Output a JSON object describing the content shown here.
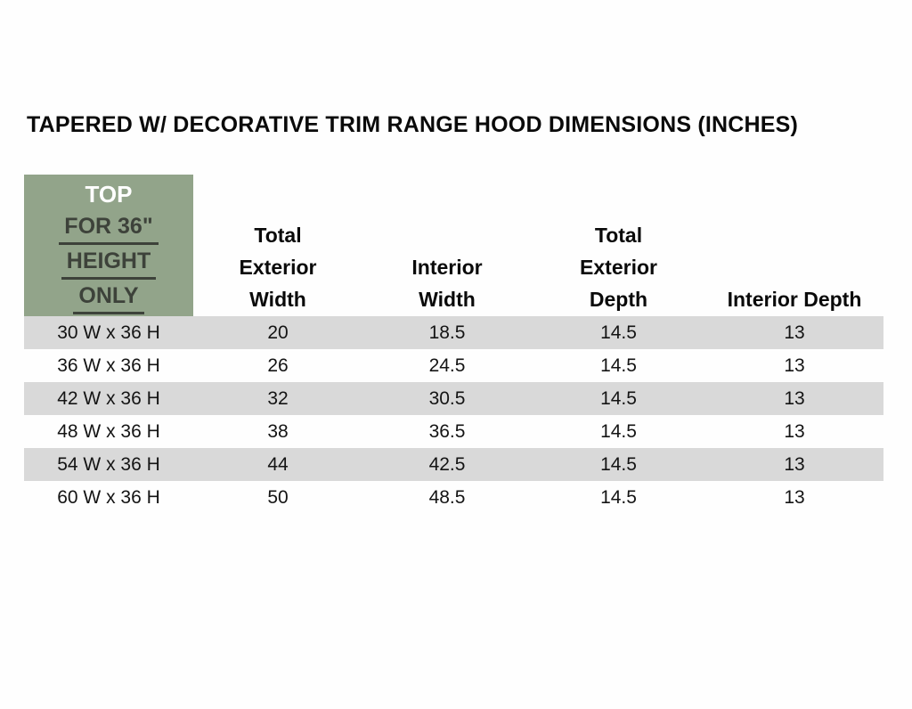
{
  "title": "TAPERED W/ DECORATIVE TRIM RANGE HOOD DIMENSIONS (INCHES)",
  "corner_box": {
    "top": "TOP",
    "lines": [
      "FOR 36\"",
      "HEIGHT",
      "ONLY"
    ]
  },
  "colors": {
    "corner_bg": "#92a48a",
    "corner_top_text": "#ffffff",
    "corner_line_text": "#3d423a",
    "stripe_row": "#d9d9d9"
  },
  "table": {
    "columns": [
      "Total\nExterior\nWidth",
      "Interior\nWidth",
      "Total\nExterior\nDepth",
      "Interior Depth"
    ],
    "rows": [
      {
        "model": "30 W x 36 H",
        "values": [
          "20",
          "18.5",
          "14.5",
          "13"
        ]
      },
      {
        "model": "36 W x 36 H",
        "values": [
          "26",
          "24.5",
          "14.5",
          "13"
        ]
      },
      {
        "model": "42 W x 36 H",
        "values": [
          "32",
          "30.5",
          "14.5",
          "13"
        ]
      },
      {
        "model": "48 W x 36 H",
        "values": [
          "38",
          "36.5",
          "14.5",
          "13"
        ]
      },
      {
        "model": "54 W x 36 H",
        "values": [
          "44",
          "42.5",
          "14.5",
          "13"
        ]
      },
      {
        "model": "60 W x 36 H",
        "values": [
          "50",
          "48.5",
          "14.5",
          "13"
        ]
      }
    ]
  }
}
